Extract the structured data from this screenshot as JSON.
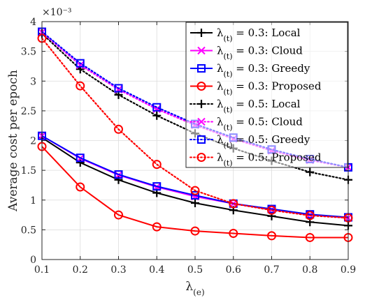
{
  "chart_data": {
    "type": "line",
    "xlabel": "λ(e)",
    "ylabel": "Average cost per epoch",
    "y_exponent_label": "×10⁻³",
    "xlim": [
      0.1,
      0.9
    ],
    "ylim": [
      0,
      4
    ],
    "x_ticks": [
      "0.1",
      "0.2",
      "0.3",
      "0.4",
      "0.5",
      "0.6",
      "0.7",
      "0.8",
      "0.9"
    ],
    "y_ticks": [
      "0",
      "0.5",
      "1",
      "1.5",
      "2",
      "2.5",
      "3",
      "3.5",
      "4"
    ],
    "grid": true,
    "legend_position": "top-right",
    "x": [
      0.1,
      0.2,
      0.3,
      0.4,
      0.5,
      0.6,
      0.7,
      0.8,
      0.9
    ],
    "series": [
      {
        "name": "λ(t) = 0.3: Local",
        "color": "#000000",
        "style": "solid",
        "marker": "plus",
        "values": [
          2.05,
          1.63,
          1.34,
          1.12,
          0.95,
          0.83,
          0.73,
          0.63,
          0.57
        ]
      },
      {
        "name": "λ(t) = 0.3: Cloud",
        "color": "#ff00ff",
        "style": "solid",
        "marker": "x",
        "values": [
          2.08,
          1.7,
          1.42,
          1.22,
          1.06,
          0.94,
          0.84,
          0.75,
          0.7
        ]
      },
      {
        "name": "λ(t) = 0.3: Greedy",
        "color": "#0000ff",
        "style": "solid",
        "marker": "square",
        "values": [
          2.08,
          1.71,
          1.43,
          1.23,
          1.08,
          0.94,
          0.85,
          0.76,
          0.71
        ]
      },
      {
        "name": "λ(t) = 0.3: Proposed",
        "color": "#ff0000",
        "style": "solid",
        "marker": "circle",
        "values": [
          1.9,
          1.22,
          0.75,
          0.55,
          0.48,
          0.44,
          0.4,
          0.37,
          0.37
        ]
      },
      {
        "name": "λ(t) = 0.5: Local",
        "color": "#000000",
        "style": "dotted",
        "marker": "plus",
        "values": [
          3.8,
          3.2,
          2.77,
          2.42,
          2.12,
          1.87,
          1.66,
          1.47,
          1.34
        ]
      },
      {
        "name": "λ(t) = 0.5: Cloud",
        "color": "#ff00ff",
        "style": "dotted",
        "marker": "x",
        "values": [
          3.82,
          3.27,
          2.86,
          2.53,
          2.26,
          2.03,
          1.83,
          1.67,
          1.55
        ]
      },
      {
        "name": "λ(t) = 0.5: Greedy",
        "color": "#0000ff",
        "style": "dotted",
        "marker": "square",
        "values": [
          3.83,
          3.3,
          2.88,
          2.56,
          2.28,
          2.05,
          1.85,
          1.69,
          1.55
        ]
      },
      {
        "name": "λ(t) = 0.5: Proposed",
        "color": "#ff0000",
        "style": "dotted",
        "marker": "circle",
        "values": [
          3.72,
          2.92,
          2.19,
          1.6,
          1.16,
          0.94,
          0.83,
          0.74,
          0.7
        ]
      }
    ]
  }
}
